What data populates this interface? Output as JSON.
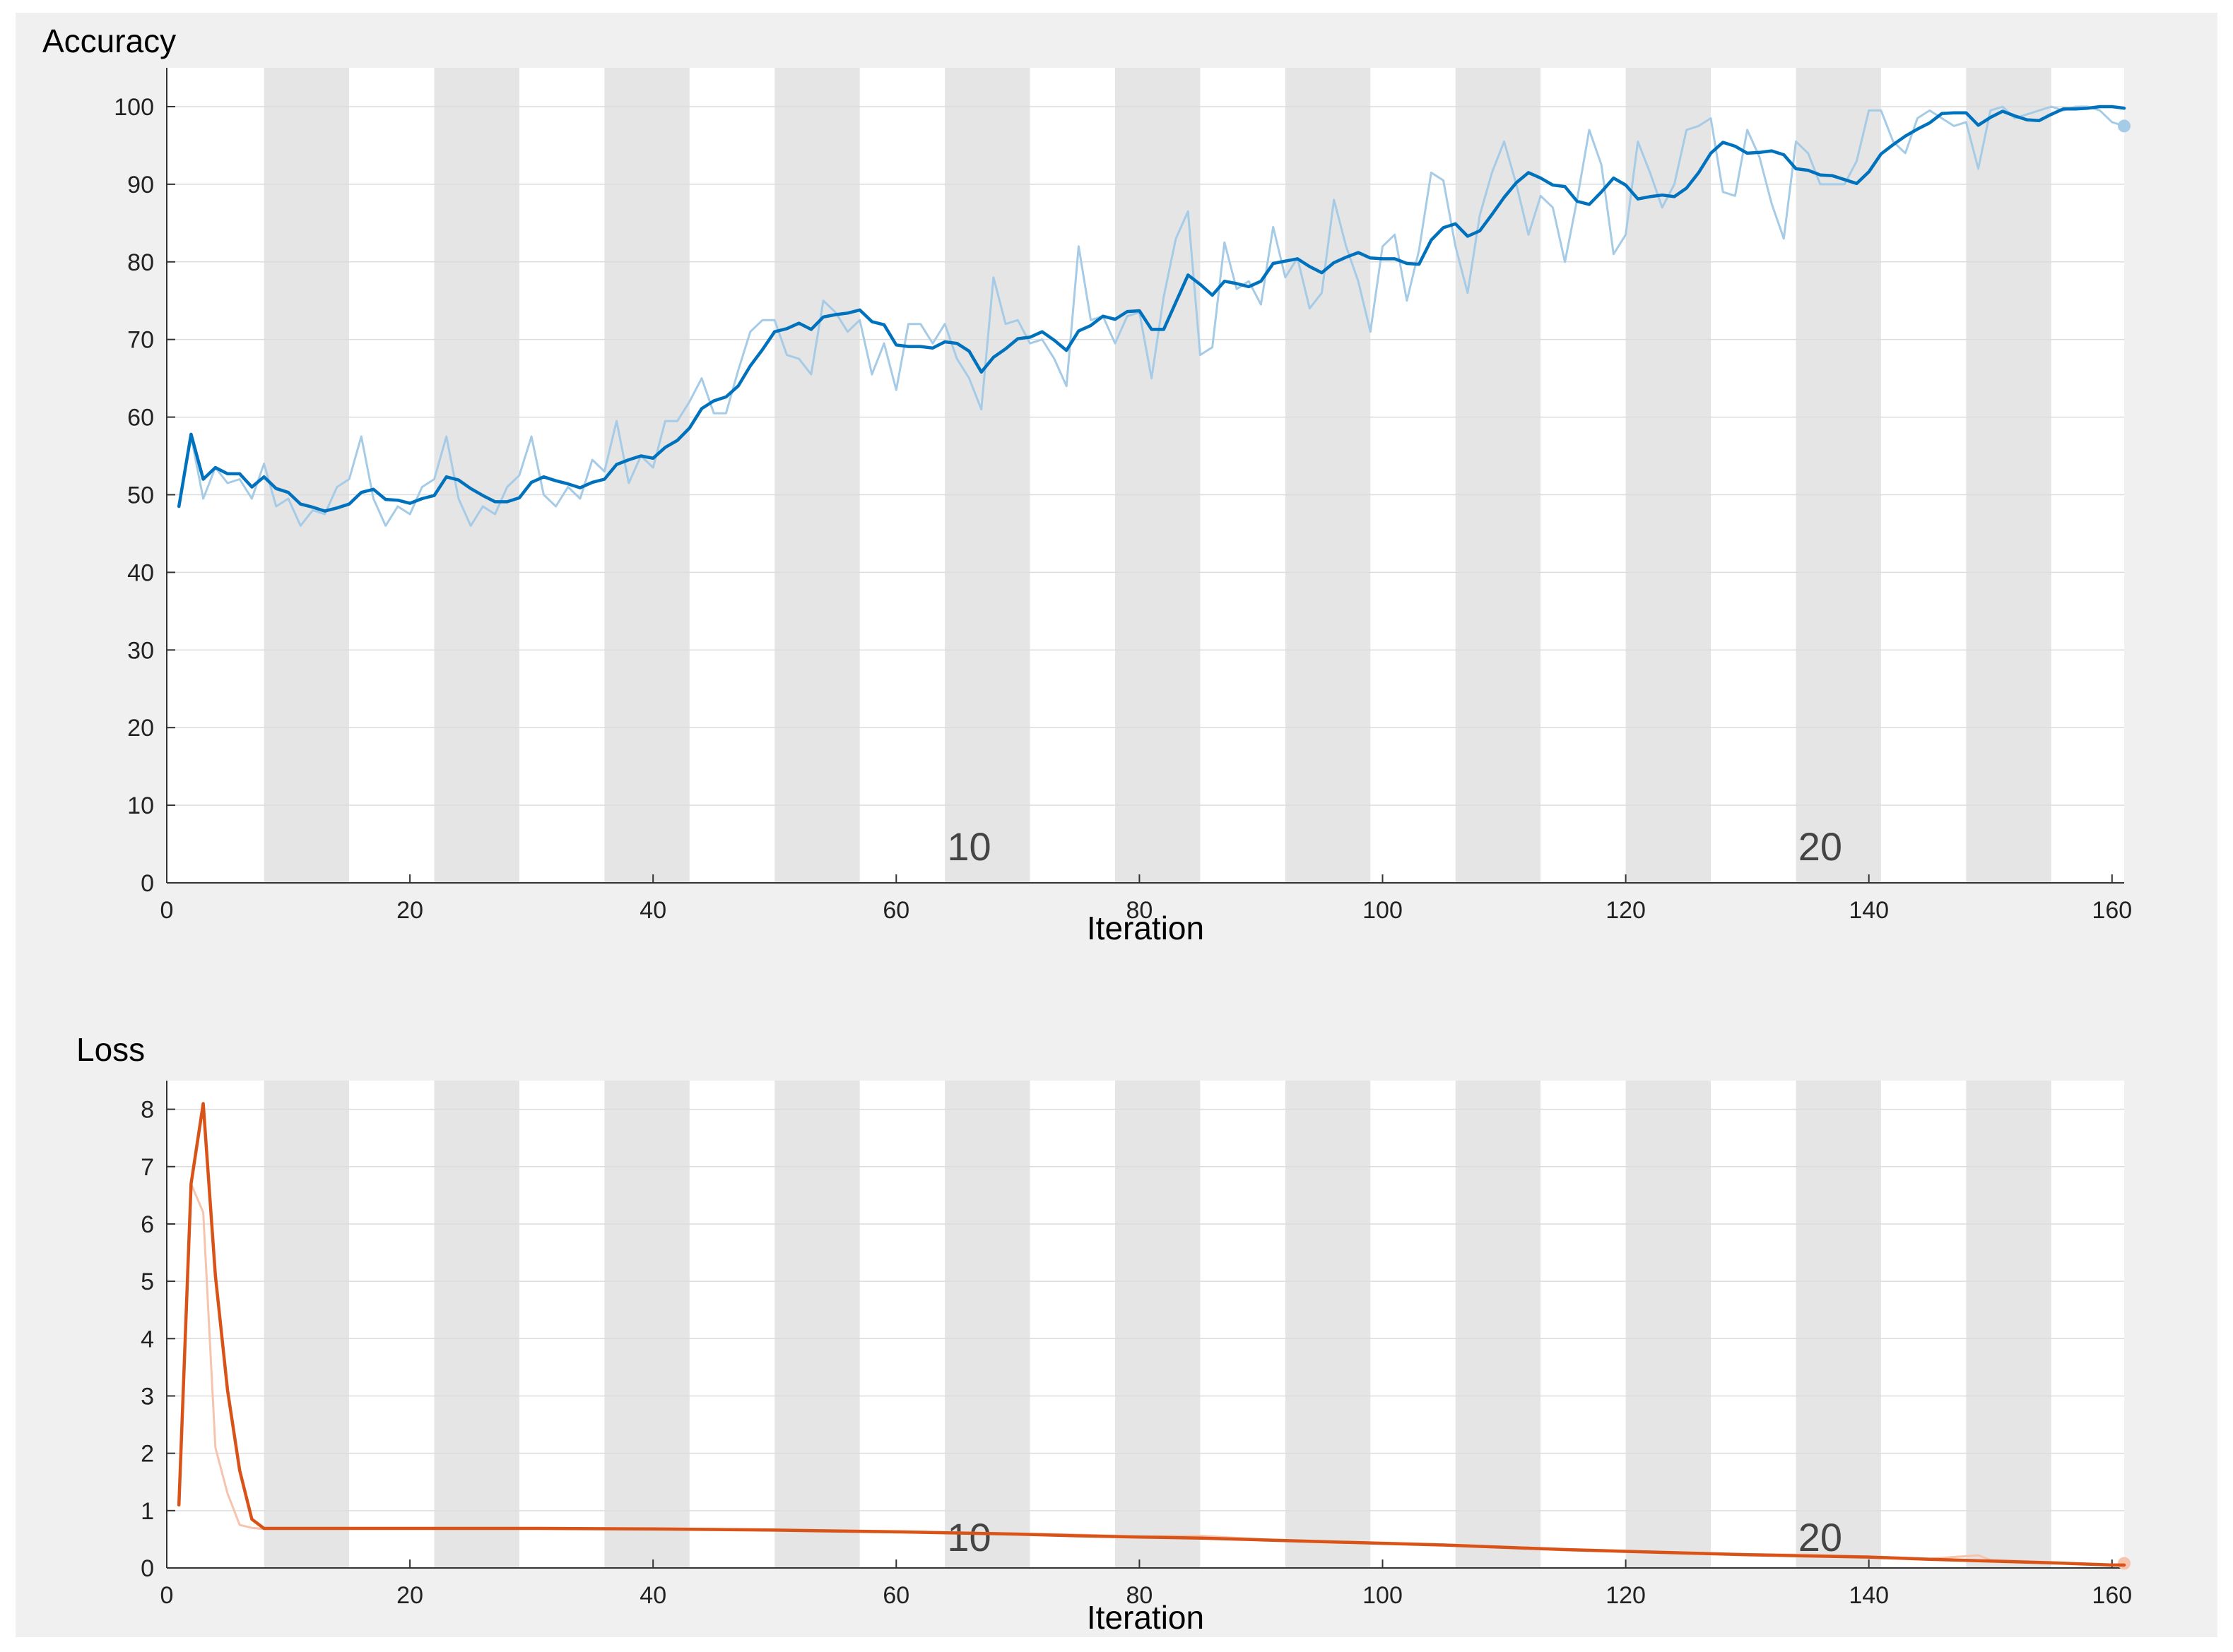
{
  "chart_data": [
    {
      "type": "line",
      "title": "Accuracy",
      "xlabel": "Iteration",
      "ylabel": "",
      "xlim": [
        0,
        161
      ],
      "ylim": [
        0,
        105
      ],
      "xticks": [
        0,
        20,
        40,
        60,
        80,
        100,
        120,
        140,
        160
      ],
      "yticks": [
        0,
        10,
        20,
        30,
        40,
        50,
        60,
        70,
        80,
        90,
        100
      ],
      "grid": true,
      "epoch_bands": [
        [
          8,
          15
        ],
        [
          22,
          29
        ],
        [
          36,
          43
        ],
        [
          50,
          57
        ],
        [
          64,
          71
        ],
        [
          78,
          85
        ],
        [
          92,
          99
        ],
        [
          106,
          113
        ],
        [
          120,
          127
        ],
        [
          134,
          141
        ],
        [
          148,
          155
        ]
      ],
      "epoch_labels": [
        {
          "x": 66,
          "text": "10"
        },
        {
          "x": 136,
          "text": "20"
        }
      ],
      "colors": {
        "smoothed": "#0072bd",
        "raw": "#a6cbe6"
      },
      "series": [
        {
          "role": "raw",
          "x": [
            1,
            2,
            3,
            4,
            5,
            6,
            7,
            8,
            9,
            10,
            11,
            12,
            13,
            14,
            15,
            16,
            17,
            18,
            19,
            20,
            21,
            22,
            23,
            24,
            25,
            26,
            27,
            28,
            29,
            30,
            31,
            32,
            33,
            34,
            35,
            36,
            37,
            38,
            39,
            40,
            41,
            42,
            43,
            44,
            45,
            46,
            47,
            48,
            49,
            50,
            51,
            52,
            53,
            54,
            55,
            56,
            57,
            58,
            59,
            60,
            61,
            62,
            63,
            64,
            65,
            66,
            67,
            68,
            69,
            70,
            71,
            72,
            73,
            74,
            75,
            76,
            77,
            78,
            79,
            80,
            81,
            82,
            83,
            84,
            85,
            86,
            87,
            88,
            89,
            90,
            91,
            92,
            93,
            94,
            95,
            96,
            97,
            98,
            99,
            100,
            101,
            102,
            103,
            104,
            105,
            106,
            107,
            108,
            109,
            110,
            111,
            112,
            113,
            114,
            115,
            116,
            117,
            118,
            119,
            120,
            121,
            122,
            123,
            124,
            125,
            126,
            127,
            128,
            129,
            130,
            131,
            132,
            133,
            134,
            135,
            136,
            137,
            138,
            139,
            140,
            141,
            142,
            143,
            144,
            145,
            146,
            147,
            148,
            149,
            150,
            151,
            152,
            153,
            154,
            155,
            156,
            157,
            158,
            159,
            160,
            161
          ],
          "y": [
            48.5,
            57.5,
            49.5,
            53.5,
            51.5,
            52,
            49.5,
            54,
            48.5,
            49.5,
            46,
            48,
            47.5,
            51,
            52,
            57.5,
            49.5,
            46,
            48.5,
            47.5,
            51,
            52,
            57.5,
            49.5,
            46,
            48.5,
            47.5,
            51,
            52.5,
            57.5,
            50,
            48.5,
            51,
            49.5,
            54.5,
            53,
            59.5,
            51.5,
            55,
            53.5,
            59.5,
            59.5,
            62,
            65,
            60.5,
            60.5,
            66,
            71,
            72.5,
            72.5,
            68,
            67.5,
            65.5,
            75,
            73.5,
            71,
            72.5,
            65.5,
            69.5,
            63.5,
            72,
            72,
            69.5,
            72,
            67.5,
            65,
            61,
            78,
            72,
            72.5,
            69.5,
            70,
            67.5,
            64,
            82,
            72.5,
            73,
            69.5,
            73,
            73.5,
            65,
            75.5,
            83,
            86.5,
            68,
            69,
            82.5,
            76.5,
            77.5,
            74.5,
            84.5,
            78,
            80.5,
            74,
            76,
            88,
            82,
            77.5,
            71,
            82,
            83.5,
            75,
            81.5,
            91.5,
            90.5,
            82,
            76,
            86,
            91.5,
            95.5,
            90,
            83.5,
            88.5,
            87,
            80,
            88,
            97,
            92.5,
            81,
            83.5,
            95.5,
            91.5,
            87,
            90,
            97,
            97.5,
            98.5,
            89,
            88.5,
            97,
            93.5,
            87.5,
            83,
            95.5,
            94,
            90,
            90,
            90,
            93,
            99.5,
            99.5,
            95.5,
            94,
            98.5,
            99.5,
            98.5,
            97.5,
            98,
            92,
            99.5,
            100,
            98.5,
            99,
            99.5,
            100,
            99.5,
            100,
            100,
            99.5,
            98,
            97.5
          ]
        },
        {
          "role": "smoothed",
          "x": [
            1,
            2,
            3,
            4,
            5,
            6,
            7,
            8,
            9,
            10,
            11,
            12,
            13,
            14,
            15,
            16,
            17,
            18,
            19,
            20,
            21,
            22,
            23,
            24,
            25,
            26,
            27,
            28,
            29,
            30,
            31,
            32,
            33,
            34,
            35,
            36,
            37,
            38,
            39,
            40,
            41,
            42,
            43,
            44,
            45,
            46,
            47,
            48,
            49,
            50,
            51,
            52,
            53,
            54,
            55,
            56,
            57,
            58,
            59,
            60,
            61,
            62,
            63,
            64,
            65,
            66,
            67,
            68,
            69,
            70,
            71,
            72,
            73,
            74,
            75,
            76,
            77,
            78,
            79,
            80,
            81,
            82,
            83,
            84,
            85,
            86,
            87,
            88,
            89,
            90,
            91,
            92,
            93,
            94,
            95,
            96,
            97,
            98,
            99,
            100,
            101,
            102,
            103,
            104,
            105,
            106,
            107,
            108,
            109,
            110,
            111,
            112,
            113,
            114,
            115,
            116,
            117,
            118,
            119,
            120,
            121,
            122,
            123,
            124,
            125,
            126,
            127,
            128,
            129,
            130,
            131,
            132,
            133,
            134,
            135,
            136,
            137,
            138,
            139,
            140,
            141,
            142,
            143,
            144,
            145,
            146,
            147,
            148,
            149,
            150,
            151,
            152,
            153,
            154,
            155,
            156,
            157,
            158,
            159,
            160,
            161
          ],
          "y": [
            48.5,
            57.8,
            52,
            53.5,
            52.7,
            52.7,
            51,
            52.3,
            50.8,
            50.3,
            48.8,
            48.4,
            47.9,
            48.3,
            48.8,
            50.3,
            50.7,
            49.4,
            49.3,
            48.9,
            49.5,
            49.9,
            52.3,
            51.9,
            50.8,
            49.9,
            49.1,
            49.1,
            49.6,
            51.6,
            52.3,
            51.8,
            51.4,
            50.9,
            51.6,
            52,
            53.9,
            54.5,
            55,
            54.7,
            56.1,
            57,
            58.6,
            61.1,
            62.1,
            62.6,
            64,
            66.6,
            68.7,
            71,
            71.4,
            72.1,
            71.3,
            72.9,
            73.2,
            73.4,
            73.8,
            72.3,
            71.9,
            69.3,
            69.1,
            69.1,
            68.9,
            69.7,
            69.5,
            68.5,
            65.8,
            67.7,
            68.8,
            70.1,
            70.3,
            71,
            69.9,
            68.6,
            71.1,
            71.8,
            73,
            72.6,
            73.6,
            73.7,
            71.3,
            71.3,
            74.8,
            78.3,
            77.1,
            75.7,
            77.5,
            77.2,
            76.8,
            77.5,
            79.8,
            80.1,
            80.4,
            79.4,
            78.6,
            79.9,
            80.6,
            81.2,
            80.5,
            80.4,
            80.4,
            79.8,
            79.7,
            82.8,
            84.4,
            84.9,
            83.3,
            84,
            86.1,
            88.3,
            90.2,
            91.5,
            90.8,
            89.9,
            89.7,
            87.8,
            87.4,
            89,
            90.8,
            89.9,
            88.1,
            88.4,
            88.6,
            88.4,
            89.5,
            91.5,
            94,
            95.4,
            94.9,
            94,
            94.1,
            94.3,
            93.8,
            92,
            91.8,
            91.2,
            91.1,
            90.6,
            90.1,
            91.6,
            93.9,
            95.1,
            96.2,
            97.1,
            97.9,
            99.1,
            99.2,
            99.2,
            97.6,
            98.6,
            99.4,
            98.8,
            98.3,
            98.2,
            99,
            99.7,
            99.7,
            99.8,
            100,
            100,
            99.8
          ]
        }
      ]
    },
    {
      "type": "line",
      "title": "Loss",
      "xlabel": "Iteration",
      "ylabel": "",
      "xlim": [
        0,
        161
      ],
      "ylim": [
        0,
        8.5
      ],
      "xticks": [
        0,
        20,
        40,
        60,
        80,
        100,
        120,
        140,
        160
      ],
      "yticks": [
        0,
        1,
        2,
        3,
        4,
        5,
        6,
        7,
        8
      ],
      "grid": true,
      "epoch_bands": [
        [
          8,
          15
        ],
        [
          22,
          29
        ],
        [
          36,
          43
        ],
        [
          50,
          57
        ],
        [
          64,
          71
        ],
        [
          78,
          85
        ],
        [
          92,
          99
        ],
        [
          106,
          113
        ],
        [
          120,
          127
        ],
        [
          134,
          141
        ],
        [
          148,
          155
        ]
      ],
      "epoch_labels": [
        {
          "x": 66,
          "text": "10"
        },
        {
          "x": 136,
          "text": "20"
        }
      ],
      "colors": {
        "smoothed": "#d95319",
        "raw": "#f6c3ad"
      },
      "series": [
        {
          "role": "raw",
          "x": [
            1,
            2,
            3,
            4,
            5,
            6,
            7,
            8,
            10,
            20,
            30,
            40,
            50,
            60,
            65,
            70,
            75,
            80,
            85,
            90,
            95,
            100,
            105,
            110,
            115,
            120,
            125,
            130,
            135,
            140,
            145,
            149,
            150,
            155,
            160,
            161
          ],
          "y": [
            1.1,
            6.7,
            6.2,
            2.1,
            1.3,
            0.75,
            0.7,
            0.68,
            0.69,
            0.69,
            0.69,
            0.69,
            0.67,
            0.64,
            0.62,
            0.6,
            0.58,
            0.55,
            0.56,
            0.5,
            0.46,
            0.44,
            0.41,
            0.37,
            0.33,
            0.3,
            0.26,
            0.24,
            0.23,
            0.2,
            0.16,
            0.22,
            0.14,
            0.1,
            0.05,
            0.08
          ]
        },
        {
          "role": "smoothed",
          "x": [
            1,
            2,
            3,
            4,
            5,
            6,
            7,
            8,
            10,
            20,
            30,
            40,
            50,
            60,
            65,
            70,
            75,
            80,
            85,
            90,
            95,
            100,
            105,
            110,
            115,
            120,
            125,
            130,
            135,
            140,
            145,
            150,
            155,
            160,
            161
          ],
          "y": [
            1.1,
            6.7,
            8.1,
            5.1,
            3.1,
            1.7,
            0.85,
            0.69,
            0.69,
            0.69,
            0.69,
            0.68,
            0.66,
            0.63,
            0.61,
            0.59,
            0.56,
            0.54,
            0.52,
            0.49,
            0.46,
            0.43,
            0.4,
            0.36,
            0.32,
            0.29,
            0.26,
            0.23,
            0.21,
            0.19,
            0.15,
            0.12,
            0.09,
            0.05,
            0.05
          ]
        }
      ]
    }
  ]
}
